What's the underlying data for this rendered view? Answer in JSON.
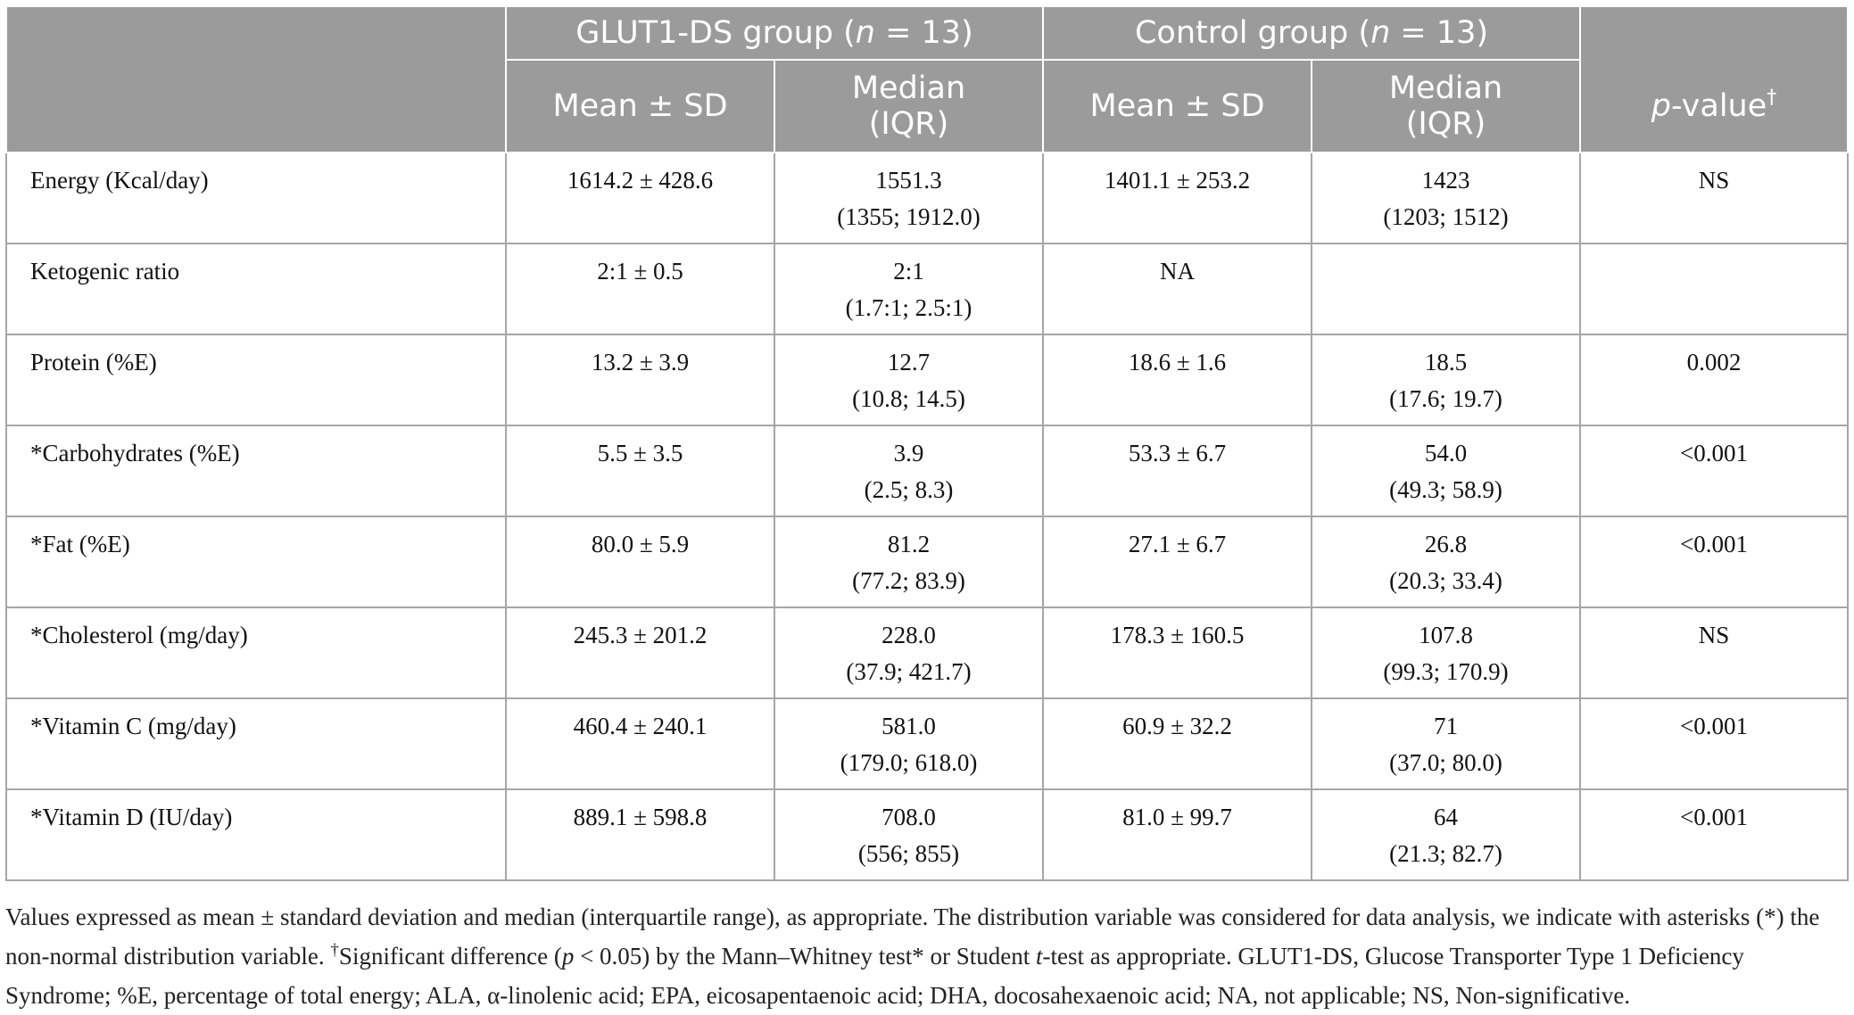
{
  "header": {
    "glut1_group": "GLUT1-DS group (",
    "control_group": "Control group (",
    "n_symbol": "n",
    "n_value": " = 13)",
    "mean_sd": "Mean ± SD",
    "median_line1": "Median",
    "median_line2": "(IQR)",
    "pvalue_p": "p",
    "pvalue_rest": "-value",
    "dagger": "†"
  },
  "rows": [
    {
      "label": "Energy (Kcal/day)",
      "g_mean": "1614.2 ± 428.6",
      "g_median": "1551.3",
      "g_iqr": "(1355; 1912.0)",
      "c_mean": "1401.1 ± 253.2",
      "c_median": "1423",
      "c_iqr": "(1203; 1512)",
      "p": "NS"
    },
    {
      "label": "Ketogenic ratio",
      "g_mean": "2:1 ± 0.5",
      "g_median": "2:1",
      "g_iqr": "(1.7:1; 2.5:1)",
      "c_mean": "NA",
      "c_median": "",
      "c_iqr": "",
      "p": ""
    },
    {
      "label": "Protein (%E)",
      "g_mean": "13.2 ± 3.9",
      "g_median": "12.7",
      "g_iqr": "(10.8; 14.5)",
      "c_mean": "18.6 ± 1.6",
      "c_median": "18.5",
      "c_iqr": "(17.6; 19.7)",
      "p": "0.002"
    },
    {
      "label": "*Carbohydrates (%E)",
      "g_mean": "5.5 ± 3.5",
      "g_median": "3.9",
      "g_iqr": "(2.5; 8.3)",
      "c_mean": "53.3 ± 6.7",
      "c_median": "54.0",
      "c_iqr": "(49.3; 58.9)",
      "p": "<0.001"
    },
    {
      "label": "*Fat (%E)",
      "g_mean": "80.0 ± 5.9",
      "g_median": "81.2",
      "g_iqr": "(77.2; 83.9)",
      "c_mean": "27.1 ± 6.7",
      "c_median": "26.8",
      "c_iqr": "(20.3; 33.4)",
      "p": "<0.001"
    },
    {
      "label": "*Cholesterol (mg/day)",
      "g_mean": "245.3 ± 201.2",
      "g_median": "228.0",
      "g_iqr": "(37.9; 421.7)",
      "c_mean": "178.3 ± 160.5",
      "c_median": "107.8",
      "c_iqr": "(99.3; 170.9)",
      "p": "NS"
    },
    {
      "label": "*Vitamin C (mg/day)",
      "g_mean": "460.4 ± 240.1",
      "g_median": "581.0",
      "g_iqr": "(179.0; 618.0)",
      "c_mean": "60.9 ± 32.2",
      "c_median": "71",
      "c_iqr": "(37.0; 80.0)",
      "p": "<0.001"
    },
    {
      "label": "*Vitamin D (IU/day)",
      "g_mean": "889.1 ± 598.8",
      "g_median": "708.0",
      "g_iqr": "(556; 855)",
      "c_mean": "81.0 ± 99.7",
      "c_median": "64",
      "c_iqr": "(21.3; 82.7)",
      "p": "<0.001"
    }
  ],
  "footnote": {
    "part1": "Values expressed as mean ± standard deviation and median (interquartile range), as appropriate. The distribution variable was considered for data analysis, we indicate with asterisks (*) the non-normal distribution variable. ",
    "dagger": "†",
    "part2": "Significant difference (",
    "p_italic": "p",
    "part3": " < 0.05) by the Mann–Whitney test* or Student ",
    "t_italic": "t",
    "part4": "-test as appropriate. GLUT1-DS, Glucose Transporter Type 1 Deficiency Syndrome; %E, percentage of total energy; ALA, α-linolenic acid; EPA, eicosapentaenoic acid; DHA, docosahexaenoic acid; NA, not applicable; NS, Non-significative."
  }
}
